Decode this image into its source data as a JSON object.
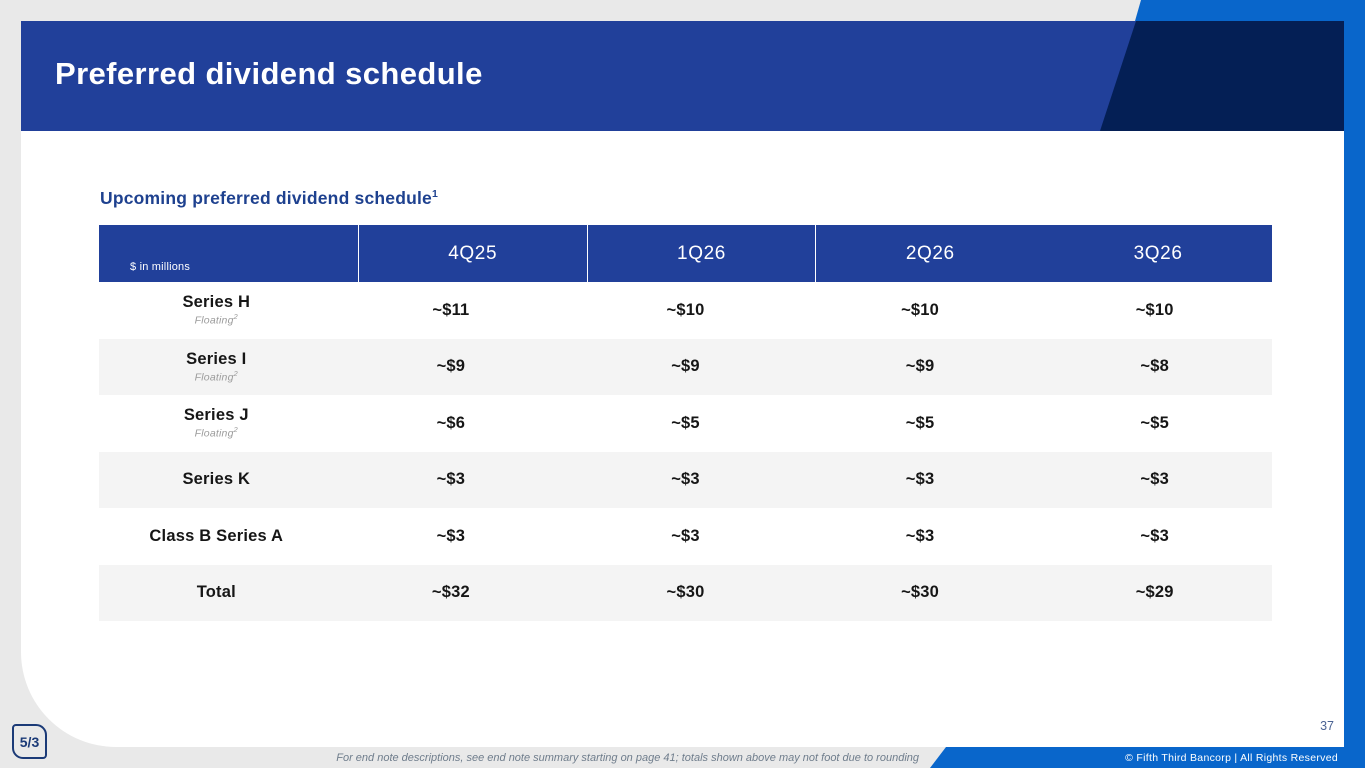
{
  "slide": {
    "title": "Preferred dividend schedule",
    "page_number": "37",
    "copyright": "© Fifth Third Bancorp | All Rights Reserved",
    "footnote": "For end note descriptions, see end note summary starting on page 41; totals shown above may not foot due to rounding",
    "logo_text": "5/3"
  },
  "colors": {
    "header_blue": "#21409a",
    "navy_accent": "#041f55",
    "bright_blue": "#0966cb",
    "row_alt_gray": "#f4f4f4",
    "heading_text_blue": "#1e418f"
  },
  "section": {
    "heading": "Upcoming preferred dividend schedule",
    "heading_sup": "1"
  },
  "table": {
    "corner_label": "$ in millions",
    "columns": [
      "4Q25",
      "1Q26",
      "2Q26",
      "3Q26"
    ],
    "rows": [
      {
        "label": "Series H",
        "sublabel": "Floating",
        "sup": "2",
        "values": [
          "~$11",
          "~$10",
          "~$10",
          "~$10"
        ]
      },
      {
        "label": "Series I",
        "sublabel": "Floating",
        "sup": "2",
        "values": [
          "~$9",
          "~$9",
          "~$9",
          "~$8"
        ]
      },
      {
        "label": "Series J",
        "sublabel": "Floating",
        "sup": "2",
        "values": [
          "~$6",
          "~$5",
          "~$5",
          "~$5"
        ]
      },
      {
        "label": "Series K",
        "values": [
          "~$3",
          "~$3",
          "~$3",
          "~$3"
        ]
      },
      {
        "label": "Class B Series A",
        "values": [
          "~$3",
          "~$3",
          "~$3",
          "~$3"
        ]
      },
      {
        "label": "Total",
        "values": [
          "~$32",
          "~$30",
          "~$30",
          "~$29"
        ]
      }
    ]
  }
}
